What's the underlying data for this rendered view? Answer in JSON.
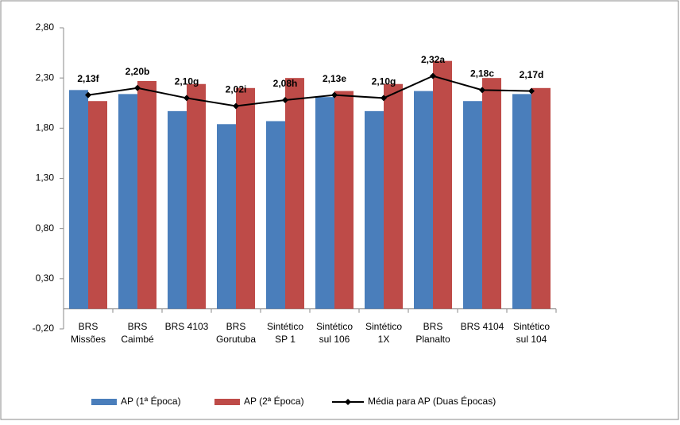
{
  "chart_data": {
    "type": "bar",
    "categories": [
      [
        "BRS",
        "Missões"
      ],
      [
        "BRS",
        "Caimbé"
      ],
      [
        "BRS 4103"
      ],
      [
        "BRS",
        "Gorutuba"
      ],
      [
        "Sintético",
        "SP 1"
      ],
      [
        "Sintético",
        "sul 106"
      ],
      [
        "Sintético",
        "1X"
      ],
      [
        "BRS",
        "Planalto"
      ],
      [
        "BRS 4104"
      ],
      [
        "Sintético",
        "sul  104"
      ]
    ],
    "series": [
      {
        "name": "AP (1ª Época)",
        "color": "#4a7ebb",
        "values": [
          2.18,
          2.14,
          1.97,
          1.84,
          1.87,
          2.11,
          1.97,
          2.17,
          2.07,
          2.14
        ]
      },
      {
        "name": "AP (2ª Época)",
        "color": "#be4b48",
        "values": [
          2.07,
          2.27,
          2.24,
          2.2,
          2.3,
          2.17,
          2.24,
          2.47,
          2.3,
          2.2
        ]
      },
      {
        "name": "Média para AP (Duas Épocas)",
        "color": "#000000",
        "kind": "line",
        "values": [
          2.13,
          2.2,
          2.1,
          2.02,
          2.08,
          2.13,
          2.1,
          2.32,
          2.18,
          2.17
        ],
        "value_labels": [
          "2,13f",
          "2,20b",
          "2,10g",
          "2,02i",
          "2,08h",
          "2,13e",
          "2,10g",
          "2,32a",
          "2,18c",
          "2,17d"
        ]
      }
    ],
    "ylim": [
      -0.2,
      2.8
    ],
    "yticks": [
      {
        "value": -0.2,
        "label": "-0,20"
      },
      {
        "value": 0.3,
        "label": "0,30"
      },
      {
        "value": 0.8,
        "label": "0,80"
      },
      {
        "value": 1.3,
        "label": "1,30"
      },
      {
        "value": 1.8,
        "label": "1,80"
      },
      {
        "value": 2.3,
        "label": "2,30"
      },
      {
        "value": 2.8,
        "label": "2,80"
      }
    ],
    "legend": "bottom"
  }
}
